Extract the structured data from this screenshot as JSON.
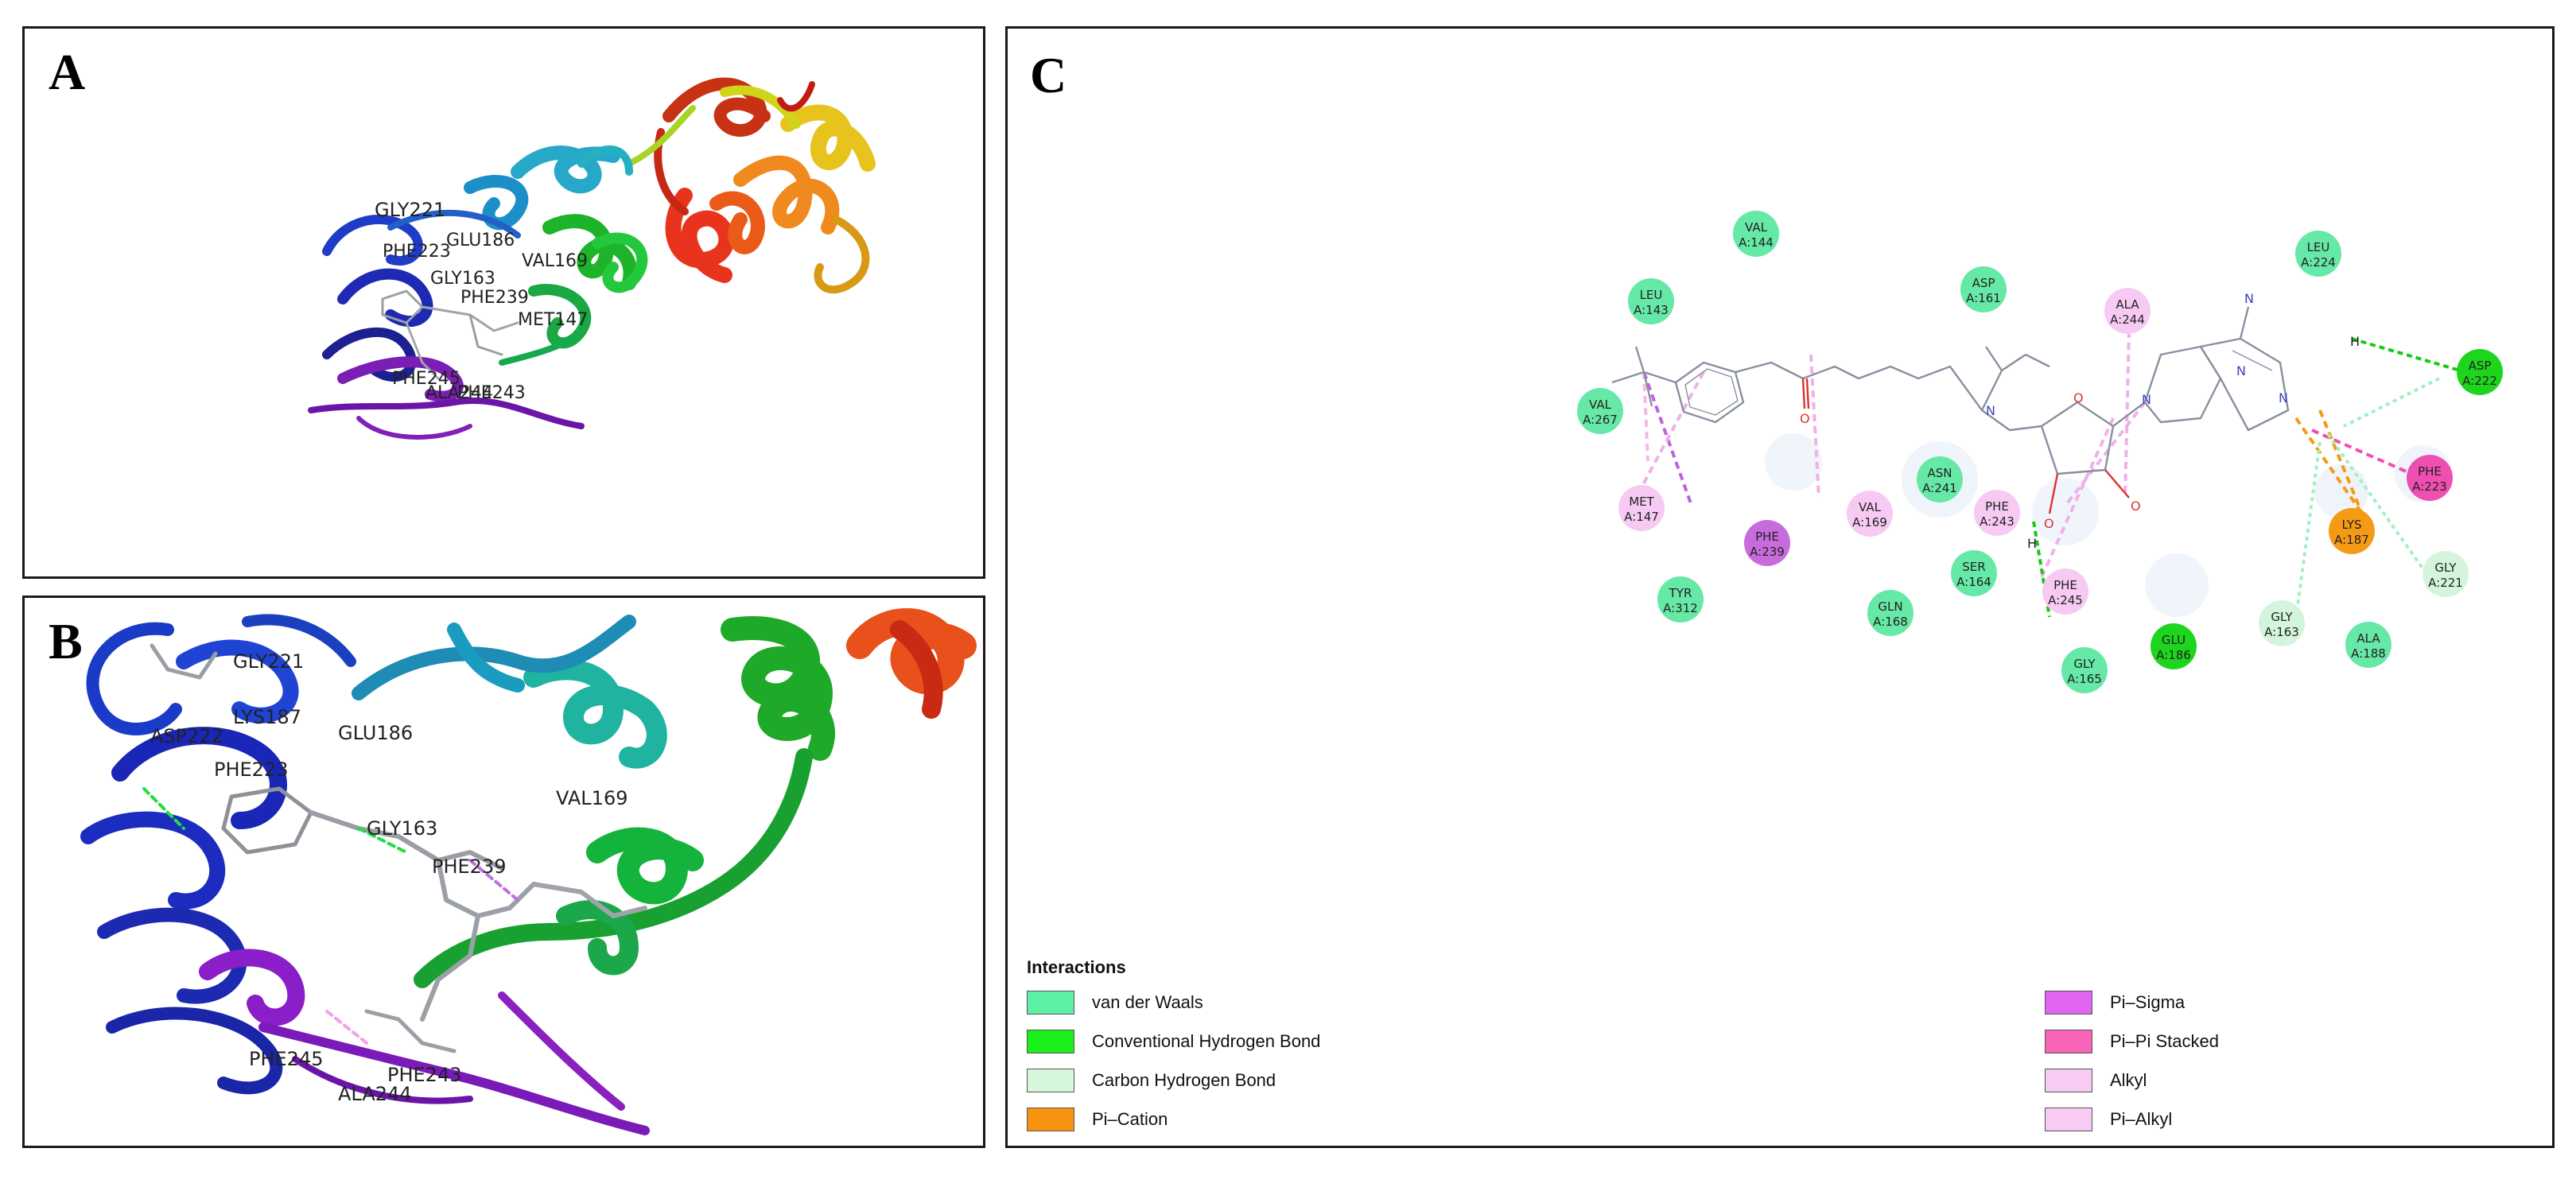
{
  "panels": {
    "a": {
      "letter": "A"
    },
    "b": {
      "letter": "B"
    },
    "c": {
      "letter": "C"
    }
  },
  "panel_a_labels": [
    "GLY221",
    "PHE223",
    "GLU186",
    "GLY163",
    "VAL169",
    "PHE239",
    "MET147",
    "PHE245",
    "ALA244",
    "PHE243"
  ],
  "panel_b_labels": [
    "GLY221",
    "ASP222",
    "LYS187",
    "PHE223",
    "GLU186",
    "GLY163",
    "VAL169",
    "PHE239",
    "PHE245",
    "ALA244",
    "PHE243"
  ],
  "residues": [
    {
      "name": "VAL",
      "num": "A:144",
      "type": "vdw"
    },
    {
      "name": "LEU",
      "num": "A:143",
      "type": "vdw"
    },
    {
      "name": "VAL",
      "num": "A:267",
      "type": "vdw"
    },
    {
      "name": "MET",
      "num": "A:147",
      "type": "alkyl"
    },
    {
      "name": "PHE",
      "num": "A:239",
      "type": "pisigma"
    },
    {
      "name": "TYR",
      "num": "A:312",
      "type": "vdw"
    },
    {
      "name": "VAL",
      "num": "A:169",
      "type": "alkyl"
    },
    {
      "name": "ASN",
      "num": "A:241",
      "type": "vdw"
    },
    {
      "name": "GLN",
      "num": "A:168",
      "type": "vdw"
    },
    {
      "name": "ASP",
      "num": "A:161",
      "type": "vdw"
    },
    {
      "name": "PHE",
      "num": "A:243",
      "type": "alkyl"
    },
    {
      "name": "SER",
      "num": "A:164",
      "type": "vdw"
    },
    {
      "name": "ALA",
      "num": "A:244",
      "type": "alkyl"
    },
    {
      "name": "PHE",
      "num": "A:245",
      "type": "alkyl"
    },
    {
      "name": "GLY",
      "num": "A:165",
      "type": "vdw"
    },
    {
      "name": "GLU",
      "num": "A:186",
      "type": "hbond"
    },
    {
      "name": "LEU",
      "num": "A:224",
      "type": "vdw"
    },
    {
      "name": "ASP",
      "num": "A:222",
      "type": "hbond"
    },
    {
      "name": "PHE",
      "num": "A:223",
      "type": "pipi"
    },
    {
      "name": "LYS",
      "num": "A:187",
      "type": "pication"
    },
    {
      "name": "GLY",
      "num": "A:221",
      "type": "chbond"
    },
    {
      "name": "GLY",
      "num": "A:163",
      "type": "chbond"
    },
    {
      "name": "ALA",
      "num": "A:188",
      "type": "vdw"
    }
  ],
  "residue_colors": {
    "vdw": "#66e8a6",
    "hbond": "#1ed51e",
    "chbond": "#d4f5dc",
    "pication": "#f59a14",
    "pisigma": "#c86bdc",
    "pipi": "#ee4fb0",
    "alkyl": "#f7caf3"
  },
  "legend": {
    "title": "Interactions",
    "items": [
      {
        "label": "van der Waals",
        "color": "#5ff0a8"
      },
      {
        "label": "Conventional Hydrogen Bond",
        "color": "#19f019"
      },
      {
        "label": "Carbon Hydrogen Bond",
        "color": "#d6f7dc"
      },
      {
        "label": "Pi–Cation",
        "color": "#f7940f"
      },
      {
        "label": "Pi–Sigma",
        "color": "#e066f2"
      },
      {
        "label": "Pi–Pi Stacked",
        "color": "#f765b8"
      },
      {
        "label": "Alkyl",
        "color": "#f7cbf3"
      },
      {
        "label": "Pi–Alkyl",
        "color": "#f7cbf3"
      }
    ]
  },
  "ligand_atoms": {
    "h_top": "H",
    "h_mid": "H"
  }
}
